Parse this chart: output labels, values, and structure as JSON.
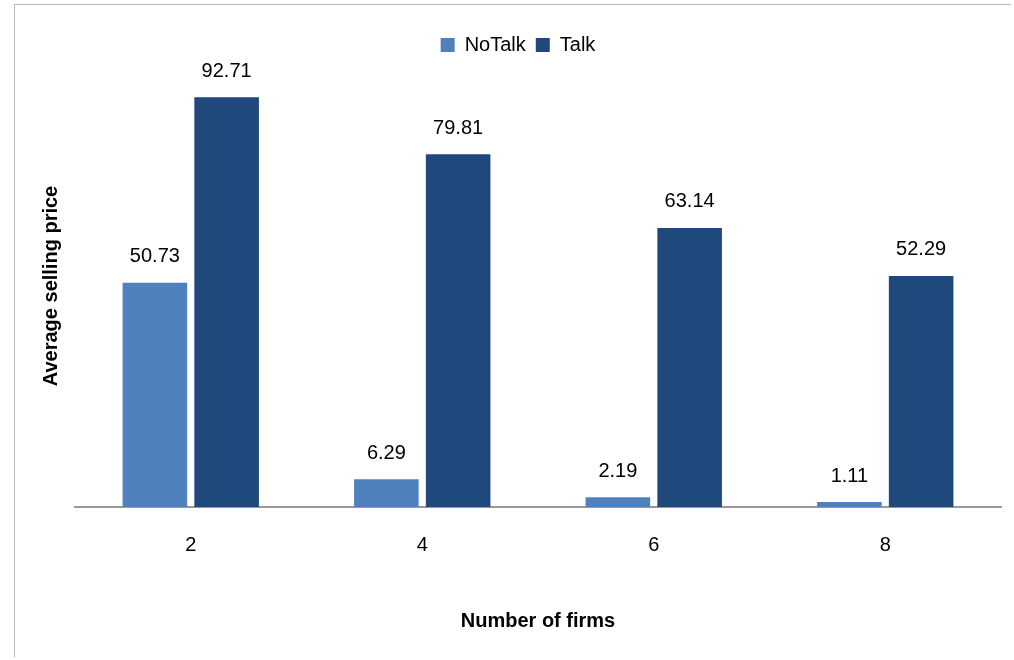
{
  "chart_data": {
    "type": "bar",
    "xlabel": "Number of firms",
    "ylabel": "Average selling price",
    "categories": [
      "2",
      "4",
      "6",
      "8"
    ],
    "series": [
      {
        "name": "NoTalk",
        "color": "#4f81bd",
        "values": [
          50.73,
          6.29,
          2.19,
          1.11
        ]
      },
      {
        "name": "Talk",
        "color": "#1f497d",
        "values": [
          92.71,
          79.81,
          63.14,
          52.29
        ]
      }
    ],
    "legend": "top",
    "data_labels": true
  }
}
